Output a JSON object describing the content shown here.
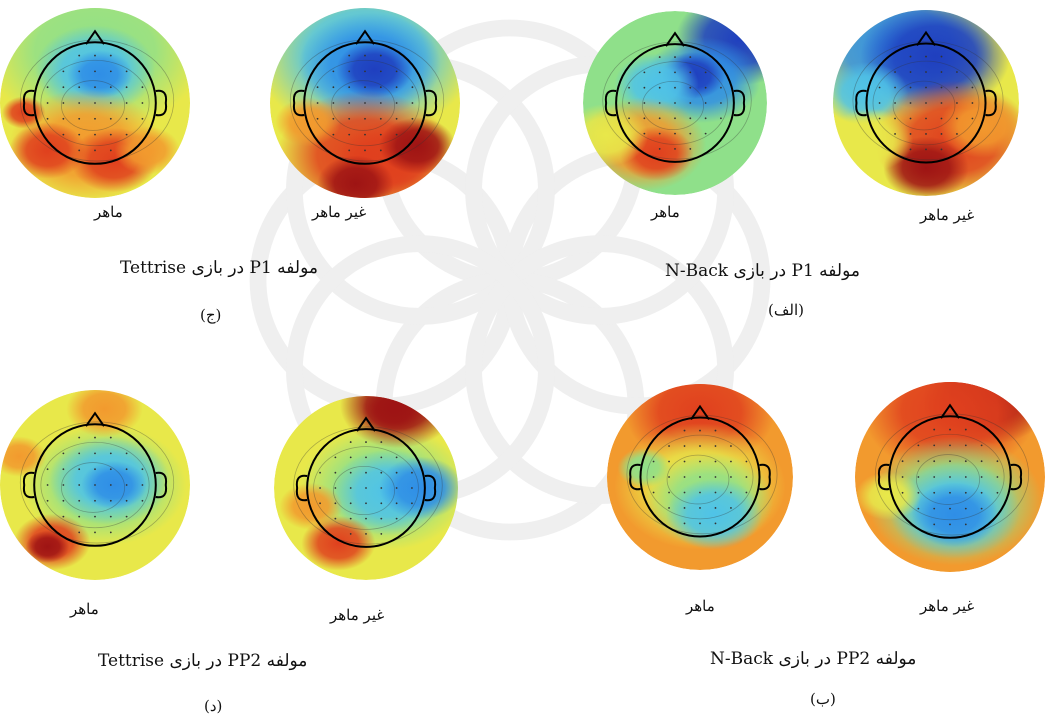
{
  "figure": {
    "groups": [
      {
        "id": "c",
        "caption": "مولفه P1 در بازی Tettrise",
        "tag": "(ج)",
        "maps": [
          {
            "label": "ماهر",
            "pattern": "expert_p1_tetris"
          },
          {
            "label": "غیر ماهر",
            "pattern": "novice_p1_tetris"
          }
        ]
      },
      {
        "id": "alef",
        "caption": "مولفه P1 در بازی N-Back",
        "tag": "(الف)",
        "maps": [
          {
            "label": "ماهر",
            "pattern": "expert_p1_nback"
          },
          {
            "label": "غیر ماهر",
            "pattern": "novice_p1_nback"
          }
        ]
      },
      {
        "id": "d",
        "caption": "مولفه PP2 در بازی Tettrise",
        "tag": "(د)",
        "maps": [
          {
            "label": "ماهر",
            "pattern": "expert_pp2_tetris"
          },
          {
            "label": "غیر ماهر",
            "pattern": "novice_pp2_tetris"
          }
        ]
      },
      {
        "id": "b",
        "caption": "مولفه PP2 در بازی N-Back",
        "tag": "(ب)",
        "maps": [
          {
            "label": "ماهر",
            "pattern": "expert_pp2_nback"
          },
          {
            "label": "غیر ماهر",
            "pattern": "novice_pp2_nback"
          }
        ]
      }
    ],
    "colormap": [
      "#1f3fbf",
      "#2f8ee6",
      "#4fc3e8",
      "#8fe08a",
      "#e8e84a",
      "#f29a2e",
      "#e0401e",
      "#9e1414"
    ]
  }
}
